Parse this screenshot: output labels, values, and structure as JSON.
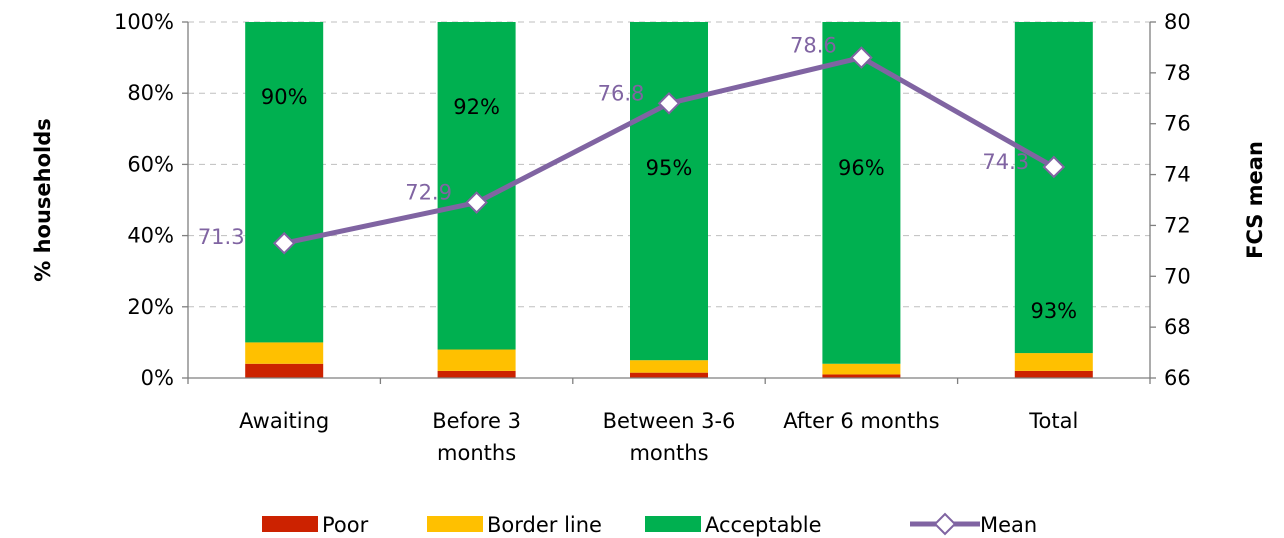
{
  "chart_data": {
    "type": "bar",
    "stacked": true,
    "percent_stacked": true,
    "categories": [
      [
        "Awaiting"
      ],
      [
        "Before 3",
        "months"
      ],
      [
        "Between 3-6",
        "months"
      ],
      [
        "After 6 months"
      ],
      [
        "Total"
      ]
    ],
    "series": [
      {
        "name": "Poor",
        "color": "#cc2200",
        "values": [
          4,
          2,
          1.5,
          1,
          2
        ]
      },
      {
        "name": "Border line",
        "color": "#ffc000",
        "values": [
          6,
          6,
          3.5,
          3,
          5
        ]
      },
      {
        "name": "Acceptable",
        "color": "#00b050",
        "values": [
          90,
          92,
          95,
          96,
          93
        ]
      }
    ],
    "acceptable_labels": [
      "90%",
      "92%",
      "95%",
      "96%",
      "93%"
    ],
    "line_series": {
      "name": "Mean",
      "color": "#8064a2",
      "axis": "right",
      "values": [
        71.3,
        72.9,
        76.8,
        78.6,
        74.3
      ],
      "labels": [
        "71.3",
        "72.9",
        "76.8",
        "78.6",
        "74.3"
      ]
    },
    "y_left": {
      "label": "% households",
      "ylim": [
        0,
        100
      ],
      "ticks": [
        {
          "value": 0,
          "label": "0%"
        },
        {
          "value": 20,
          "label": "20%"
        },
        {
          "value": 40,
          "label": "40%"
        },
        {
          "value": 60,
          "label": "60%"
        },
        {
          "value": 80,
          "label": "80%"
        },
        {
          "value": 100,
          "label": "100%"
        }
      ]
    },
    "y_right": {
      "label": "FCS mean",
      "ylim": [
        66,
        80
      ],
      "ticks": [
        {
          "value": 66,
          "label": "66"
        },
        {
          "value": 68,
          "label": "68"
        },
        {
          "value": 70,
          "label": "70"
        },
        {
          "value": 72,
          "label": "72"
        },
        {
          "value": 74,
          "label": "74"
        },
        {
          "value": 76,
          "label": "76"
        },
        {
          "value": 78,
          "label": "78"
        },
        {
          "value": 80,
          "label": "80"
        }
      ]
    },
    "grid": true,
    "legend": {
      "position": "bottom",
      "items": [
        "Poor",
        "Border line",
        "Acceptable",
        "Mean"
      ]
    }
  }
}
